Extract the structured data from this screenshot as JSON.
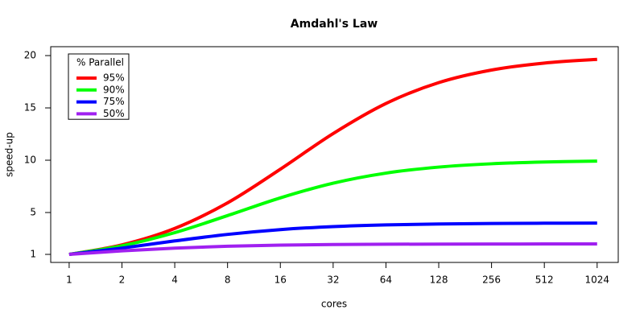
{
  "chart_data": {
    "type": "line",
    "title": "Amdahl's Law",
    "x_label": "cores",
    "y_label": "speed-up",
    "x": [
      1,
      2,
      4,
      8,
      16,
      32,
      64,
      128,
      256,
      512,
      1024
    ],
    "series": [
      {
        "name": "95%",
        "color": "#ff0000",
        "values": [
          1,
          1.905,
          3.478,
          5.926,
          9.143,
          12.549,
          15.422,
          17.415,
          18.618,
          19.284,
          19.636
        ]
      },
      {
        "name": "90%",
        "color": "#00ff00",
        "values": [
          1,
          1.818,
          3.077,
          4.706,
          6.4,
          7.805,
          8.767,
          9.343,
          9.66,
          9.827,
          9.913
        ]
      },
      {
        "name": "75%",
        "color": "#0000ff",
        "values": [
          1,
          1.6,
          2.286,
          2.909,
          3.368,
          3.657,
          3.821,
          3.908,
          3.954,
          3.977,
          3.988
        ]
      },
      {
        "name": "50%",
        "color": "#a020f0",
        "values": [
          1,
          1.333,
          1.6,
          1.778,
          1.882,
          1.939,
          1.969,
          1.984,
          1.992,
          1.996,
          1.998
        ]
      }
    ],
    "legend_title": "% Parallel",
    "legend_position": "top-left",
    "x_scale": "log",
    "xlim": [
      0.785,
      1351
    ],
    "xticks": [
      1,
      2,
      4,
      8,
      16,
      32,
      64,
      128,
      256,
      512,
      1024
    ],
    "ylim": [
      0.23,
      20.85
    ],
    "yticks": [
      1,
      5,
      10,
      15,
      20
    ]
  }
}
